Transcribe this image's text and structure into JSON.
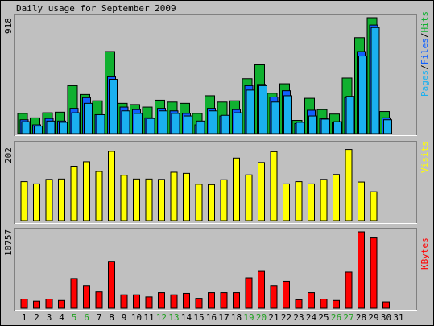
{
  "chart_data": [
    {
      "type": "bar",
      "title": "Daily usage for September 2009",
      "ymax_label": "918",
      "ylim": [
        0,
        918
      ],
      "series": [
        {
          "name": "Pages",
          "color": "#1060ff"
        },
        {
          "name": "Files",
          "color": "#1ab0f0"
        },
        {
          "name": "Hits",
          "color": "#10b030"
        }
      ],
      "side_label": {
        "pages": "Pages",
        "sep1": "/",
        "files": "Files",
        "sep2": "/",
        "hits": "Hits"
      },
      "hits": [
        160,
        125,
        165,
        170,
        380,
        310,
        260,
        650,
        240,
        230,
        210,
        265,
        250,
        240,
        160,
        300,
        250,
        260,
        435,
        545,
        320,
        395,
        105,
        280,
        190,
        155,
        440,
        760,
        918,
        175,
        0
      ],
      "files": [
        95,
        60,
        100,
        90,
        165,
        240,
        150,
        430,
        180,
        160,
        120,
        180,
        160,
        140,
        100,
        180,
        145,
        165,
        345,
        380,
        250,
        300,
        90,
        140,
        115,
        95,
        295,
        615,
        840,
        110,
        0
      ],
      "pages": [
        110,
        70,
        120,
        100,
        200,
        285,
        150,
        450,
        210,
        190,
        125,
        200,
        180,
        160,
        70,
        200,
        140,
        190,
        380,
        390,
        290,
        340,
        80,
        185,
        120,
        90,
        285,
        650,
        860,
        125,
        0
      ]
    },
    {
      "type": "bar",
      "ymax_label": "202",
      "ylim": [
        0,
        202
      ],
      "series": [
        {
          "name": "Visits",
          "color": "#ffff00",
          "values": [
            104,
            98,
            110,
            111,
            145,
            157,
            131,
            185,
            121,
            111,
            111,
            110,
            129,
            126,
            97,
            96,
            109,
            167,
            122,
            155,
            184,
            98,
            104,
            98,
            110,
            123,
            190,
            103,
            77,
            0,
            0
          ]
        }
      ],
      "side_label": "Visits"
    },
    {
      "type": "bar",
      "ymax_label": "10757",
      "ylim": [
        0,
        10757
      ],
      "series": [
        {
          "name": "KBytes",
          "color": "#ff0000",
          "values": [
            1300,
            1000,
            1300,
            1100,
            4200,
            3200,
            2300,
            6600,
            1900,
            1900,
            1600,
            2200,
            1900,
            2100,
            1400,
            2200,
            2200,
            2200,
            4300,
            5200,
            3200,
            3800,
            1200,
            2200,
            1300,
            1100,
            5100,
            10757,
            9900,
            900,
            0
          ]
        }
      ],
      "side_label": "KBytes"
    }
  ],
  "days": [
    "1",
    "2",
    "3",
    "4",
    "5",
    "6",
    "7",
    "8",
    "9",
    "10",
    "11",
    "12",
    "13",
    "14",
    "15",
    "16",
    "17",
    "18",
    "19",
    "20",
    "21",
    "22",
    "23",
    "24",
    "25",
    "26",
    "27",
    "28",
    "29",
    "30",
    "31"
  ],
  "weekend_days": [
    5,
    6,
    12,
    13,
    19,
    20,
    26,
    27
  ],
  "colors": {
    "weekday": "#000000",
    "weekend": "#20a020",
    "frame_dark": "#808080",
    "frame_light": "#ffffff",
    "outline": "#000000"
  }
}
